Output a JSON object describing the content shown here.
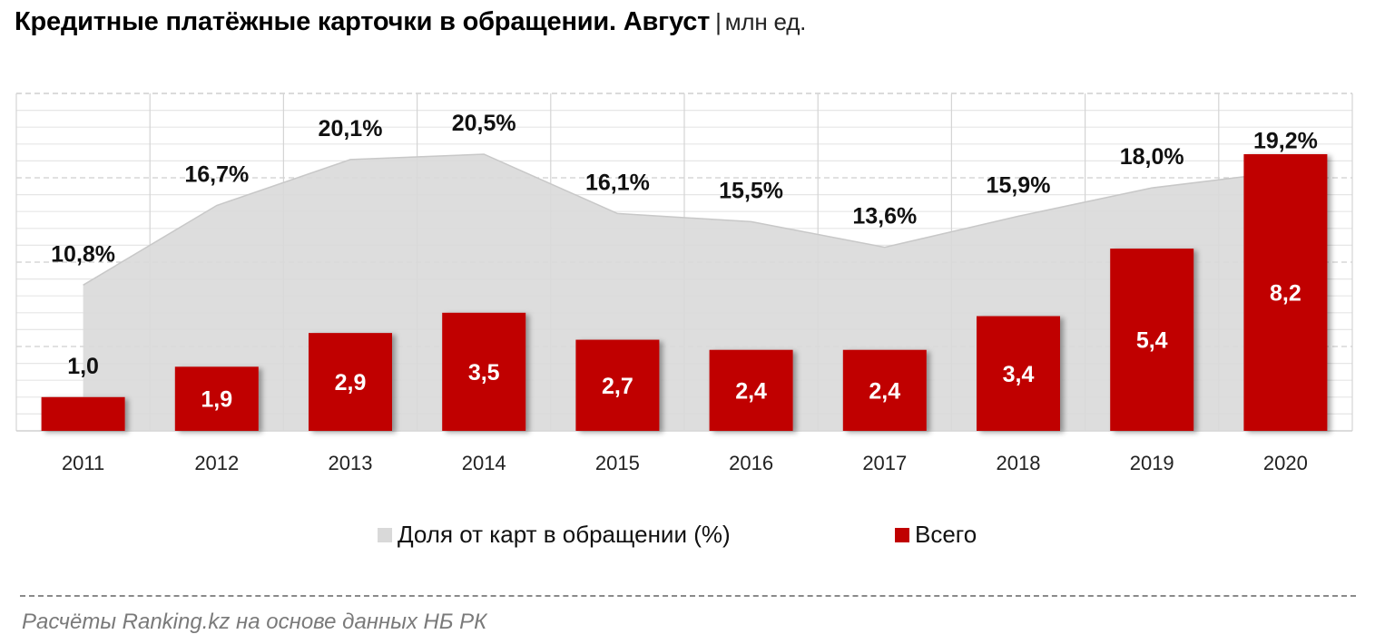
{
  "title": {
    "main": "Кредитные платёжные карточки в обращении. Август",
    "separator": "|",
    "units": "млн ед."
  },
  "chart_data": {
    "type": "bar",
    "title": "Кредитные платёжные карточки в обращении. Август",
    "units": "млн ед.",
    "categories": [
      "2011",
      "2012",
      "2013",
      "2014",
      "2015",
      "2016",
      "2017",
      "2018",
      "2019",
      "2020"
    ],
    "series": [
      {
        "name": "Всего",
        "type": "bar",
        "color": "#C00000",
        "values": [
          1.0,
          1.9,
          2.9,
          3.5,
          2.7,
          2.4,
          2.4,
          3.4,
          5.4,
          8.2
        ],
        "labels": [
          "1,0",
          "1,9",
          "2,9",
          "3,5",
          "2,7",
          "2,4",
          "2,4",
          "3,4",
          "5,4",
          "8,2"
        ]
      },
      {
        "name": "Доля от карт в обращении (%)",
        "type": "area",
        "color": "#D9D9D9",
        "values": [
          10.8,
          16.7,
          20.1,
          20.5,
          16.1,
          15.5,
          13.6,
          15.9,
          18.0,
          19.2
        ],
        "labels": [
          "10,8%",
          "16,7%",
          "20,1%",
          "20,5%",
          "16,1%",
          "15,5%",
          "13,6%",
          "15,9%",
          "18,0%",
          "19,2%"
        ]
      }
    ],
    "ylim_bars": [
      0,
      10
    ],
    "ylim_area": [
      0,
      25
    ],
    "grid": true,
    "legend": "bottom-center"
  },
  "legend": {
    "area_label": "Доля от карт в обращении (%)",
    "bar_label": "Всего"
  },
  "source": "Расчёты Ranking.kz на основе данных  НБ РК"
}
